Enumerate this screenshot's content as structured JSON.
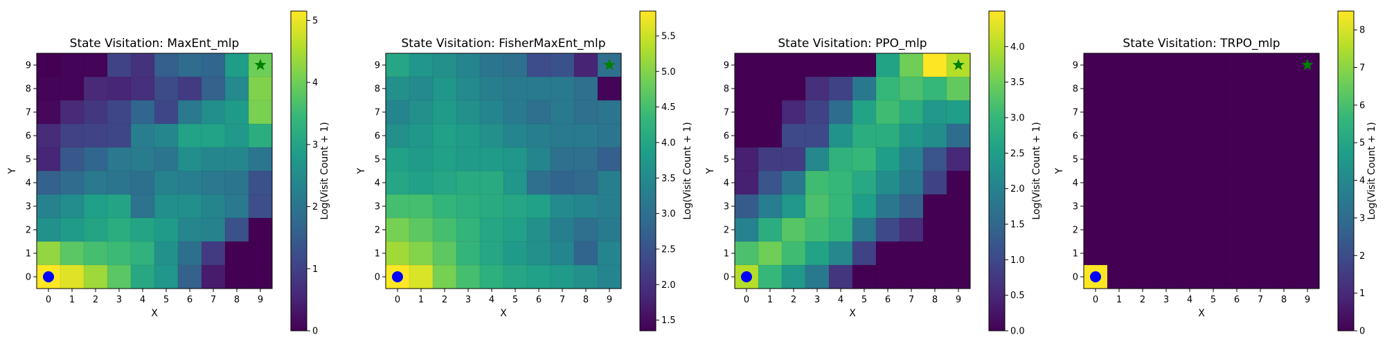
{
  "chart_data": [
    {
      "type": "heatmap",
      "title": "State Visitation: MaxEnt_mlp",
      "xlabel": "X",
      "ylabel": "Y",
      "colorbar_label": "Log(Visit Count + 1)",
      "x_ticks": [
        "0",
        "1",
        "2",
        "3",
        "4",
        "5",
        "6",
        "7",
        "8",
        "9"
      ],
      "y_ticks": [
        "0",
        "1",
        "2",
        "3",
        "4",
        "5",
        "6",
        "7",
        "8",
        "9"
      ],
      "vmin": 0,
      "vmax": 5.15,
      "colorbar_ticks": [
        0,
        1,
        2,
        3,
        4,
        5
      ],
      "colormap": "viridis",
      "start_marker": {
        "x": 0,
        "y": 0,
        "shape": "circle",
        "color": "#0000ff"
      },
      "goal_marker": {
        "x": 9,
        "y": 9,
        "shape": "star",
        "color": "#008000"
      },
      "values_rows_y9_to_y0": [
        [
          0.0,
          0.05,
          0.05,
          1.05,
          0.75,
          1.55,
          1.8,
          1.7,
          2.85,
          4.0
        ],
        [
          0.05,
          0.05,
          0.6,
          0.55,
          0.7,
          1.2,
          0.9,
          1.6,
          2.45,
          4.15
        ],
        [
          0.1,
          0.6,
          0.85,
          1.1,
          1.7,
          1.1,
          2.1,
          2.55,
          2.8,
          4.1
        ],
        [
          0.65,
          1.0,
          1.05,
          1.1,
          2.2,
          2.4,
          2.95,
          2.95,
          2.75,
          3.2
        ],
        [
          0.55,
          1.4,
          1.7,
          2.1,
          2.15,
          2.0,
          2.55,
          2.4,
          2.4,
          2.0
        ],
        [
          1.6,
          1.8,
          2.1,
          2.0,
          1.9,
          2.3,
          2.2,
          2.1,
          2.0,
          1.3
        ],
        [
          2.3,
          2.5,
          2.9,
          3.0,
          1.95,
          2.55,
          2.55,
          2.35,
          2.1,
          1.25
        ],
        [
          2.6,
          2.8,
          3.0,
          3.2,
          3.0,
          2.8,
          2.4,
          2.3,
          1.3,
          0.0
        ],
        [
          4.3,
          3.8,
          3.6,
          3.5,
          3.3,
          2.6,
          1.9,
          0.9,
          0.0,
          0.0
        ],
        [
          5.15,
          4.9,
          4.4,
          3.8,
          3.1,
          2.7,
          1.6,
          0.4,
          0.0,
          0.0
        ]
      ]
    },
    {
      "type": "heatmap",
      "title": "State Visitation: FisherMaxEnt_mlp",
      "xlabel": "X",
      "ylabel": "Y",
      "colorbar_label": "Log(Visit Count + 1)",
      "x_ticks": [
        "0",
        "1",
        "2",
        "3",
        "4",
        "5",
        "6",
        "7",
        "8",
        "9"
      ],
      "y_ticks": [
        "0",
        "1",
        "2",
        "3",
        "4",
        "5",
        "6",
        "7",
        "8",
        "9"
      ],
      "vmin": 1.35,
      "vmax": 5.85,
      "colorbar_ticks": [
        1.5,
        2.0,
        2.5,
        3.0,
        3.5,
        4.0,
        4.5,
        5.0,
        5.5
      ],
      "colormap": "viridis",
      "start_marker": {
        "x": 0,
        "y": 0,
        "shape": "circle",
        "color": "#0000ff"
      },
      "goal_marker": {
        "x": 9,
        "y": 9,
        "shape": "star",
        "color": "#008000"
      },
      "values_rows_y9_to_y0": [
        [
          4.0,
          3.7,
          3.6,
          3.4,
          3.1,
          3.0,
          2.4,
          2.5,
          1.8,
          3.0
        ],
        [
          3.6,
          3.5,
          3.7,
          3.5,
          3.3,
          3.2,
          3.2,
          3.2,
          3.0,
          1.4
        ],
        [
          3.4,
          3.6,
          3.8,
          3.6,
          3.4,
          3.2,
          3.0,
          3.2,
          3.0,
          3.1
        ],
        [
          3.6,
          3.7,
          3.9,
          3.8,
          3.6,
          3.4,
          3.3,
          3.2,
          3.2,
          3.1
        ],
        [
          3.9,
          3.8,
          3.9,
          3.8,
          3.8,
          3.7,
          3.4,
          3.0,
          3.0,
          2.7
        ],
        [
          4.0,
          3.9,
          4.0,
          4.1,
          4.1,
          3.7,
          3.0,
          2.8,
          2.9,
          3.3
        ],
        [
          4.5,
          4.5,
          4.3,
          4.2,
          4.1,
          4.0,
          3.9,
          3.5,
          3.4,
          3.3
        ],
        [
          4.9,
          4.7,
          4.5,
          4.3,
          4.0,
          3.9,
          3.6,
          3.3,
          3.0,
          3.2
        ],
        [
          5.2,
          5.0,
          4.7,
          4.3,
          4.0,
          3.8,
          3.6,
          3.4,
          2.8,
          3.4
        ],
        [
          5.85,
          5.6,
          4.9,
          4.5,
          4.2,
          4.0,
          3.9,
          3.8,
          3.6,
          3.4
        ]
      ]
    },
    {
      "type": "heatmap",
      "title": "State Visitation: PPO_mlp",
      "xlabel": "X",
      "ylabel": "Y",
      "colorbar_label": "Log(Visit Count + 1)",
      "x_ticks": [
        "0",
        "1",
        "2",
        "3",
        "4",
        "5",
        "6",
        "7",
        "8",
        "9"
      ],
      "y_ticks": [
        "0",
        "1",
        "2",
        "3",
        "4",
        "5",
        "6",
        "7",
        "8",
        "9"
      ],
      "vmin": 0,
      "vmax": 4.5,
      "colorbar_ticks": [
        0.0,
        0.5,
        1.0,
        1.5,
        2.0,
        2.5,
        3.0,
        3.5,
        4.0
      ],
      "colormap": "viridis",
      "start_marker": {
        "x": 0,
        "y": 0,
        "shape": "circle",
        "color": "#0000ff"
      },
      "goal_marker": {
        "x": 9,
        "y": 9,
        "shape": "star",
        "color": "#008000"
      },
      "values_rows_y9_to_y0": [
        [
          0.0,
          0.0,
          0.0,
          0.0,
          0.0,
          0.0,
          2.6,
          3.5,
          4.5,
          4.0
        ],
        [
          0.0,
          0.0,
          0.0,
          0.6,
          0.9,
          1.8,
          3.0,
          3.2,
          3.0,
          3.4
        ],
        [
          0.0,
          0.0,
          0.5,
          0.9,
          1.6,
          2.6,
          3.1,
          2.8,
          2.4,
          2.5
        ],
        [
          0.0,
          0.0,
          1.0,
          1.0,
          2.3,
          2.8,
          2.8,
          2.4,
          2.2,
          1.6
        ],
        [
          0.4,
          0.8,
          0.8,
          2.1,
          2.9,
          3.0,
          2.5,
          2.0,
          1.2,
          0.5
        ],
        [
          0.4,
          1.2,
          1.8,
          3.1,
          3.0,
          2.7,
          2.2,
          1.8,
          0.9,
          0.0
        ],
        [
          1.3,
          1.9,
          2.4,
          3.2,
          3.0,
          2.5,
          1.8,
          1.4,
          0.0,
          0.0
        ],
        [
          2.0,
          2.8,
          3.3,
          3.1,
          2.9,
          1.8,
          1.0,
          0.6,
          0.0,
          0.0
        ],
        [
          3.2,
          3.5,
          3.1,
          2.6,
          2.1,
          0.9,
          0.0,
          0.0,
          0.0,
          0.0
        ],
        [
          4.0,
          3.0,
          2.4,
          1.8,
          0.7,
          0.0,
          0.0,
          0.0,
          0.0,
          0.0
        ]
      ]
    },
    {
      "type": "heatmap",
      "title": "State Visitation: TRPO_mlp",
      "xlabel": "X",
      "ylabel": "Y",
      "colorbar_label": "Log(Visit Count + 1)",
      "x_ticks": [
        "0",
        "1",
        "2",
        "3",
        "4",
        "5",
        "6",
        "7",
        "8",
        "9"
      ],
      "y_ticks": [
        "0",
        "1",
        "2",
        "3",
        "4",
        "5",
        "6",
        "7",
        "8",
        "9"
      ],
      "vmin": 0,
      "vmax": 8.5,
      "colorbar_ticks": [
        0,
        1,
        2,
        3,
        4,
        5,
        6,
        7,
        8
      ],
      "colormap": "viridis",
      "start_marker": {
        "x": 0,
        "y": 0,
        "shape": "circle",
        "color": "#0000ff"
      },
      "goal_marker": {
        "x": 9,
        "y": 9,
        "shape": "star",
        "color": "#008000"
      },
      "values_rows_y9_to_y0": [
        [
          0,
          0,
          0,
          0,
          0,
          0,
          0,
          0,
          0,
          0
        ],
        [
          0,
          0,
          0,
          0,
          0,
          0,
          0,
          0,
          0,
          0
        ],
        [
          0,
          0,
          0,
          0,
          0,
          0,
          0,
          0,
          0,
          0
        ],
        [
          0,
          0,
          0,
          0,
          0,
          0,
          0,
          0,
          0,
          0
        ],
        [
          0,
          0,
          0,
          0,
          0,
          0,
          0,
          0,
          0,
          0
        ],
        [
          0,
          0,
          0,
          0,
          0,
          0,
          0,
          0,
          0,
          0
        ],
        [
          0,
          0,
          0,
          0,
          0,
          0,
          0,
          0,
          0,
          0
        ],
        [
          0,
          0,
          0,
          0,
          0,
          0,
          0,
          0,
          0,
          0
        ],
        [
          0,
          0,
          0,
          0,
          0,
          0,
          0,
          0,
          0,
          0
        ],
        [
          8.5,
          0,
          0,
          0,
          0,
          0,
          0,
          0,
          0,
          0
        ]
      ]
    }
  ]
}
